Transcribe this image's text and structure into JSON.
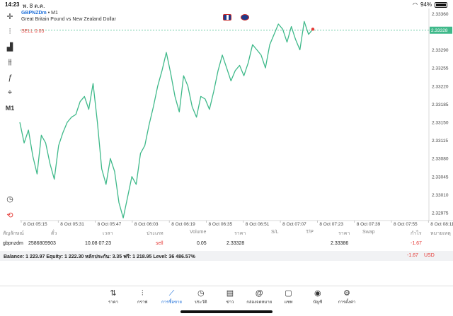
{
  "status": {
    "time": "14:23",
    "date": "พ. 8 ต.ค.",
    "battery": "94%"
  },
  "toolbar": [
    "crosshair-icon",
    "candles-icon",
    "bar-chart-icon",
    "indicators-icon",
    "function-icon",
    "objects-icon",
    "timeframe-icon",
    "clock-icon",
    "trade-icon"
  ],
  "toolbar_tf": "M1",
  "symbol": {
    "code": "GBPNZDm",
    "tf": "M1",
    "description": "Great Britain Pound vs New Zealand Dollar"
  },
  "sell_label": "SELL 0.05",
  "price_tag": "2.33328",
  "chart_data": {
    "type": "line",
    "color": "#3fb98a",
    "y_ticks": [
      "2.33360",
      "2.33325",
      "2.33290",
      "2.33255",
      "2.33220",
      "2.33185",
      "2.33150",
      "2.33115",
      "2.33080",
      "2.33045",
      "2.33010",
      "2.32975"
    ],
    "x_ticks": [
      "8 Oct 05:15",
      "8 Oct 05:31",
      "8 Oct 05:47",
      "8 Oct 06:03",
      "8 Oct 06:19",
      "8 Oct 06:35",
      "8 Oct 06:51",
      "8 Oct 07:07",
      "8 Oct 07:23",
      "8 Oct 07:39",
      "8 Oct 07:55",
      "8 Oct 08:11"
    ],
    "ylim": [
      2.3296,
      2.3337
    ],
    "sell_line": 2.33328,
    "values": [
      2.3315,
      2.3311,
      2.33135,
      2.33085,
      2.3305,
      2.33125,
      2.3311,
      2.3307,
      2.3304,
      2.33105,
      2.3313,
      2.3315,
      2.3316,
      2.33165,
      2.3319,
      2.332,
      2.33175,
      2.33225,
      2.3315,
      2.3306,
      2.3303,
      2.3308,
      2.33055,
      2.32995,
      2.32965,
      2.33005,
      2.33045,
      2.3303,
      2.3309,
      2.33105,
      2.33145,
      2.3318,
      2.3322,
      2.3325,
      2.33285,
      2.33245,
      2.332,
      2.3317,
      2.3324,
      2.3322,
      2.3318,
      2.3316,
      2.332,
      2.33195,
      2.33175,
      2.3321,
      2.3325,
      2.3328,
      2.33255,
      2.3323,
      2.3325,
      2.3326,
      2.3324,
      2.33265,
      2.333,
      2.3329,
      2.3328,
      2.33255,
      2.333,
      2.3332,
      2.3334,
      2.3333,
      2.33305,
      2.33335,
      2.3331,
      2.3329,
      2.33345,
      2.3332,
      2.3333
    ]
  },
  "table": {
    "headers": [
      "สัญลักษณ์",
      "ตั๋ว",
      "เวลา",
      "ประเภท",
      "Volume",
      "ราคา",
      "S/L",
      "T/P",
      "ราคา",
      "Swap",
      "กำไร",
      "หมายเหตุ"
    ],
    "row": [
      "gbpnzdm",
      "2586809903",
      "10.08 07:23",
      "sell",
      "0.05",
      "2.33328",
      "",
      "",
      "2.33386",
      "",
      "-1.67",
      ""
    ]
  },
  "balance": {
    "text": "Balance: 1 223.97 Equity: 1 222.30 หลักประกัน: 3.35 ฟรี: 1 218.95 Level: 36 486.57%",
    "pl": "-1.67",
    "currency": "USD"
  },
  "tabs": [
    {
      "label": "ราคา",
      "icon": "quotes-icon"
    },
    {
      "label": "กราฟ",
      "icon": "chart-icon"
    },
    {
      "label": "การซื้อขาย",
      "icon": "trade-icon"
    },
    {
      "label": "ประวัติ",
      "icon": "history-icon"
    },
    {
      "label": "ข่าว",
      "icon": "news-icon"
    },
    {
      "label": "กล่องจดหมาย",
      "icon": "mailbox-icon"
    },
    {
      "label": "แชท",
      "icon": "chat-icon"
    },
    {
      "label": "บัญชี",
      "icon": "account-icon"
    },
    {
      "label": "การตั้งค่า",
      "icon": "settings-icon"
    }
  ]
}
